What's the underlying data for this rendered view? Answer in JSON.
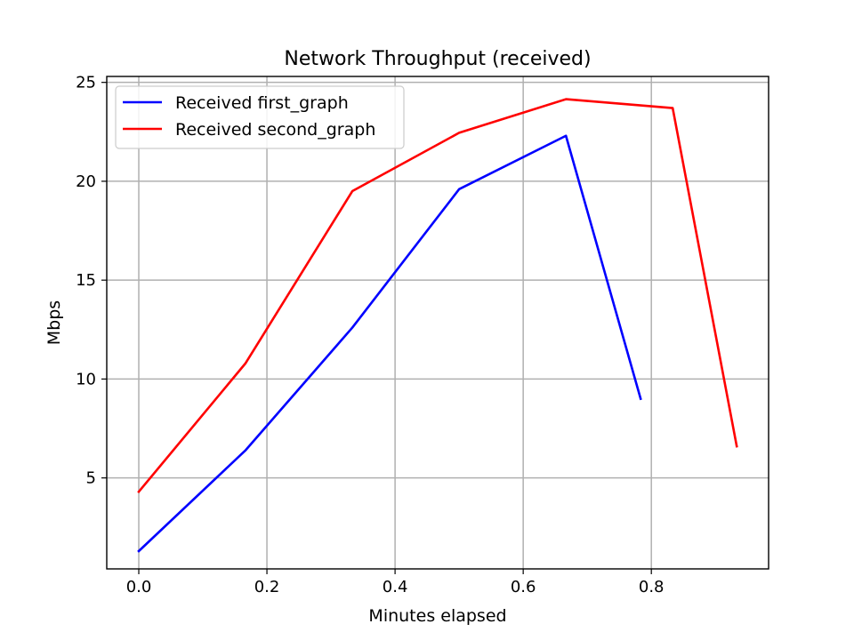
{
  "chart_data": {
    "type": "line",
    "title": "Network Throughput (received)",
    "xlabel": "Minutes elapsed",
    "ylabel": "Mbps",
    "xlim": [
      -0.05,
      0.983
    ],
    "ylim": [
      0.4,
      25.3
    ],
    "xticks": [
      0.0,
      0.2,
      0.4,
      0.6,
      0.8
    ],
    "xtick_labels": [
      "0.0",
      "0.2",
      "0.4",
      "0.6",
      "0.8"
    ],
    "yticks": [
      5,
      10,
      15,
      20,
      25
    ],
    "ytick_labels": [
      "5",
      "10",
      "15",
      "20",
      "25"
    ],
    "grid": true,
    "legend_position": "upper-left",
    "series": [
      {
        "name": "Received first_graph",
        "color": "#0000ff",
        "x": [
          0.0,
          0.1667,
          0.3333,
          0.5,
          0.6667,
          0.7833
        ],
        "y": [
          1.3,
          6.4,
          12.6,
          19.6,
          22.3,
          9.0
        ]
      },
      {
        "name": "Received second_graph",
        "color": "#ff0000",
        "x": [
          0.0,
          0.1667,
          0.3333,
          0.5,
          0.6667,
          0.8333,
          0.9333
        ],
        "y": [
          4.3,
          10.8,
          19.5,
          22.45,
          24.15,
          23.7,
          6.6
        ]
      }
    ]
  }
}
